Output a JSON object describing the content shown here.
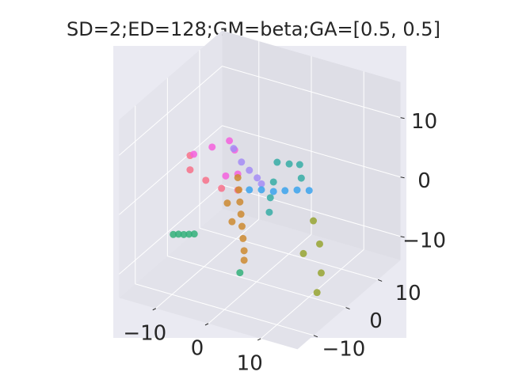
{
  "chart_data": {
    "type": "scatter3d",
    "title": "SD=2;ED=128;GM=beta;GA=[0.5, 0.5]",
    "xlim": [
      -17,
      17
    ],
    "ylim": [
      -15,
      17
    ],
    "zlim": [
      -14,
      16
    ],
    "xticks": [
      {
        "value": -10,
        "label": "−10"
      },
      0,
      10
    ],
    "yticks": [
      {
        "value": -10,
        "label": "−10"
      },
      0,
      10
    ],
    "zticks": [
      {
        "value": -10,
        "label": "−10"
      },
      0,
      10
    ],
    "grid": true,
    "series": [
      {
        "color": "#f77189",
        "x": [
          -13.3,
          -13.3,
          -10.3,
          -7.3,
          -4.2
        ],
        "y": [
          1,
          1,
          1,
          1,
          1
        ],
        "z": [
          3.4,
          1.0,
          0.0,
          -0.6,
          -0.1
        ]
      },
      {
        "color": "#f561dd",
        "x": [
          -12.6,
          -9.1,
          -5.8,
          -4.8,
          -4.2,
          -6.5
        ],
        "y": [
          1,
          1,
          1,
          1,
          1,
          1
        ],
        "z": [
          3.8,
          5.9,
          7.8,
          6.5,
          2.6,
          1.7
        ]
      },
      {
        "color": "#a48cf4",
        "x": [
          -5,
          -3.5,
          -2,
          -0.5,
          0.3
        ],
        "y": [
          1,
          1,
          1,
          1,
          1
        ],
        "z": [
          6.7,
          4.8,
          3.8,
          2.9,
          2.1
        ]
      },
      {
        "color": "#3ba3ec",
        "x": [
          -2,
          0.3,
          2.6,
          4.8,
          7.1,
          9.4
        ],
        "y": [
          1,
          1,
          1,
          1,
          1,
          1
        ],
        "z": [
          0.5,
          1.1,
          1.4,
          2.1,
          2.8,
          3.3
        ]
      },
      {
        "color": "#36ada4",
        "x": [
          1.8,
          2,
          2.6,
          3.3,
          5.6,
          7.6,
          7.9
        ],
        "y": [
          1,
          1,
          1,
          1,
          1,
          1,
          1
        ],
        "z": [
          -2.3,
          0.2,
          3.0,
          6.5,
          6.8,
          7.2,
          5.0
        ]
      },
      {
        "color": "#33b07a",
        "x": [
          -16.5,
          -15.5,
          -14.5,
          -13.5,
          -12.5,
          -3.8
        ],
        "y": [
          1,
          1,
          1,
          1,
          1,
          1
        ],
        "z": [
          -10.7,
          -10.4,
          -10.2,
          -9.9,
          -9.6,
          -13.9
        ]
      },
      {
        "color": "#97a431",
        "x": [
          10.2,
          11.4,
          11.7,
          10.9,
          8.3
        ],
        "y": [
          1,
          1,
          1,
          1,
          1
        ],
        "z": [
          -1.6,
          -5.2,
          -10,
          -13.5,
          -7.6
        ]
      },
      {
        "color": "#cc8a30",
        "x": [
          -4.2,
          -4,
          -3.8,
          -3.6,
          -3.4,
          -3.2,
          -3,
          -3,
          -6.2,
          -5.3
        ],
        "y": [
          1,
          1,
          1,
          1,
          1,
          1,
          1,
          1,
          1,
          1
        ],
        "z": [
          2,
          0,
          -2,
          -4,
          -6,
          -8,
          -10,
          -11.6,
          -2.8,
          -5.7
        ]
      }
    ]
  }
}
